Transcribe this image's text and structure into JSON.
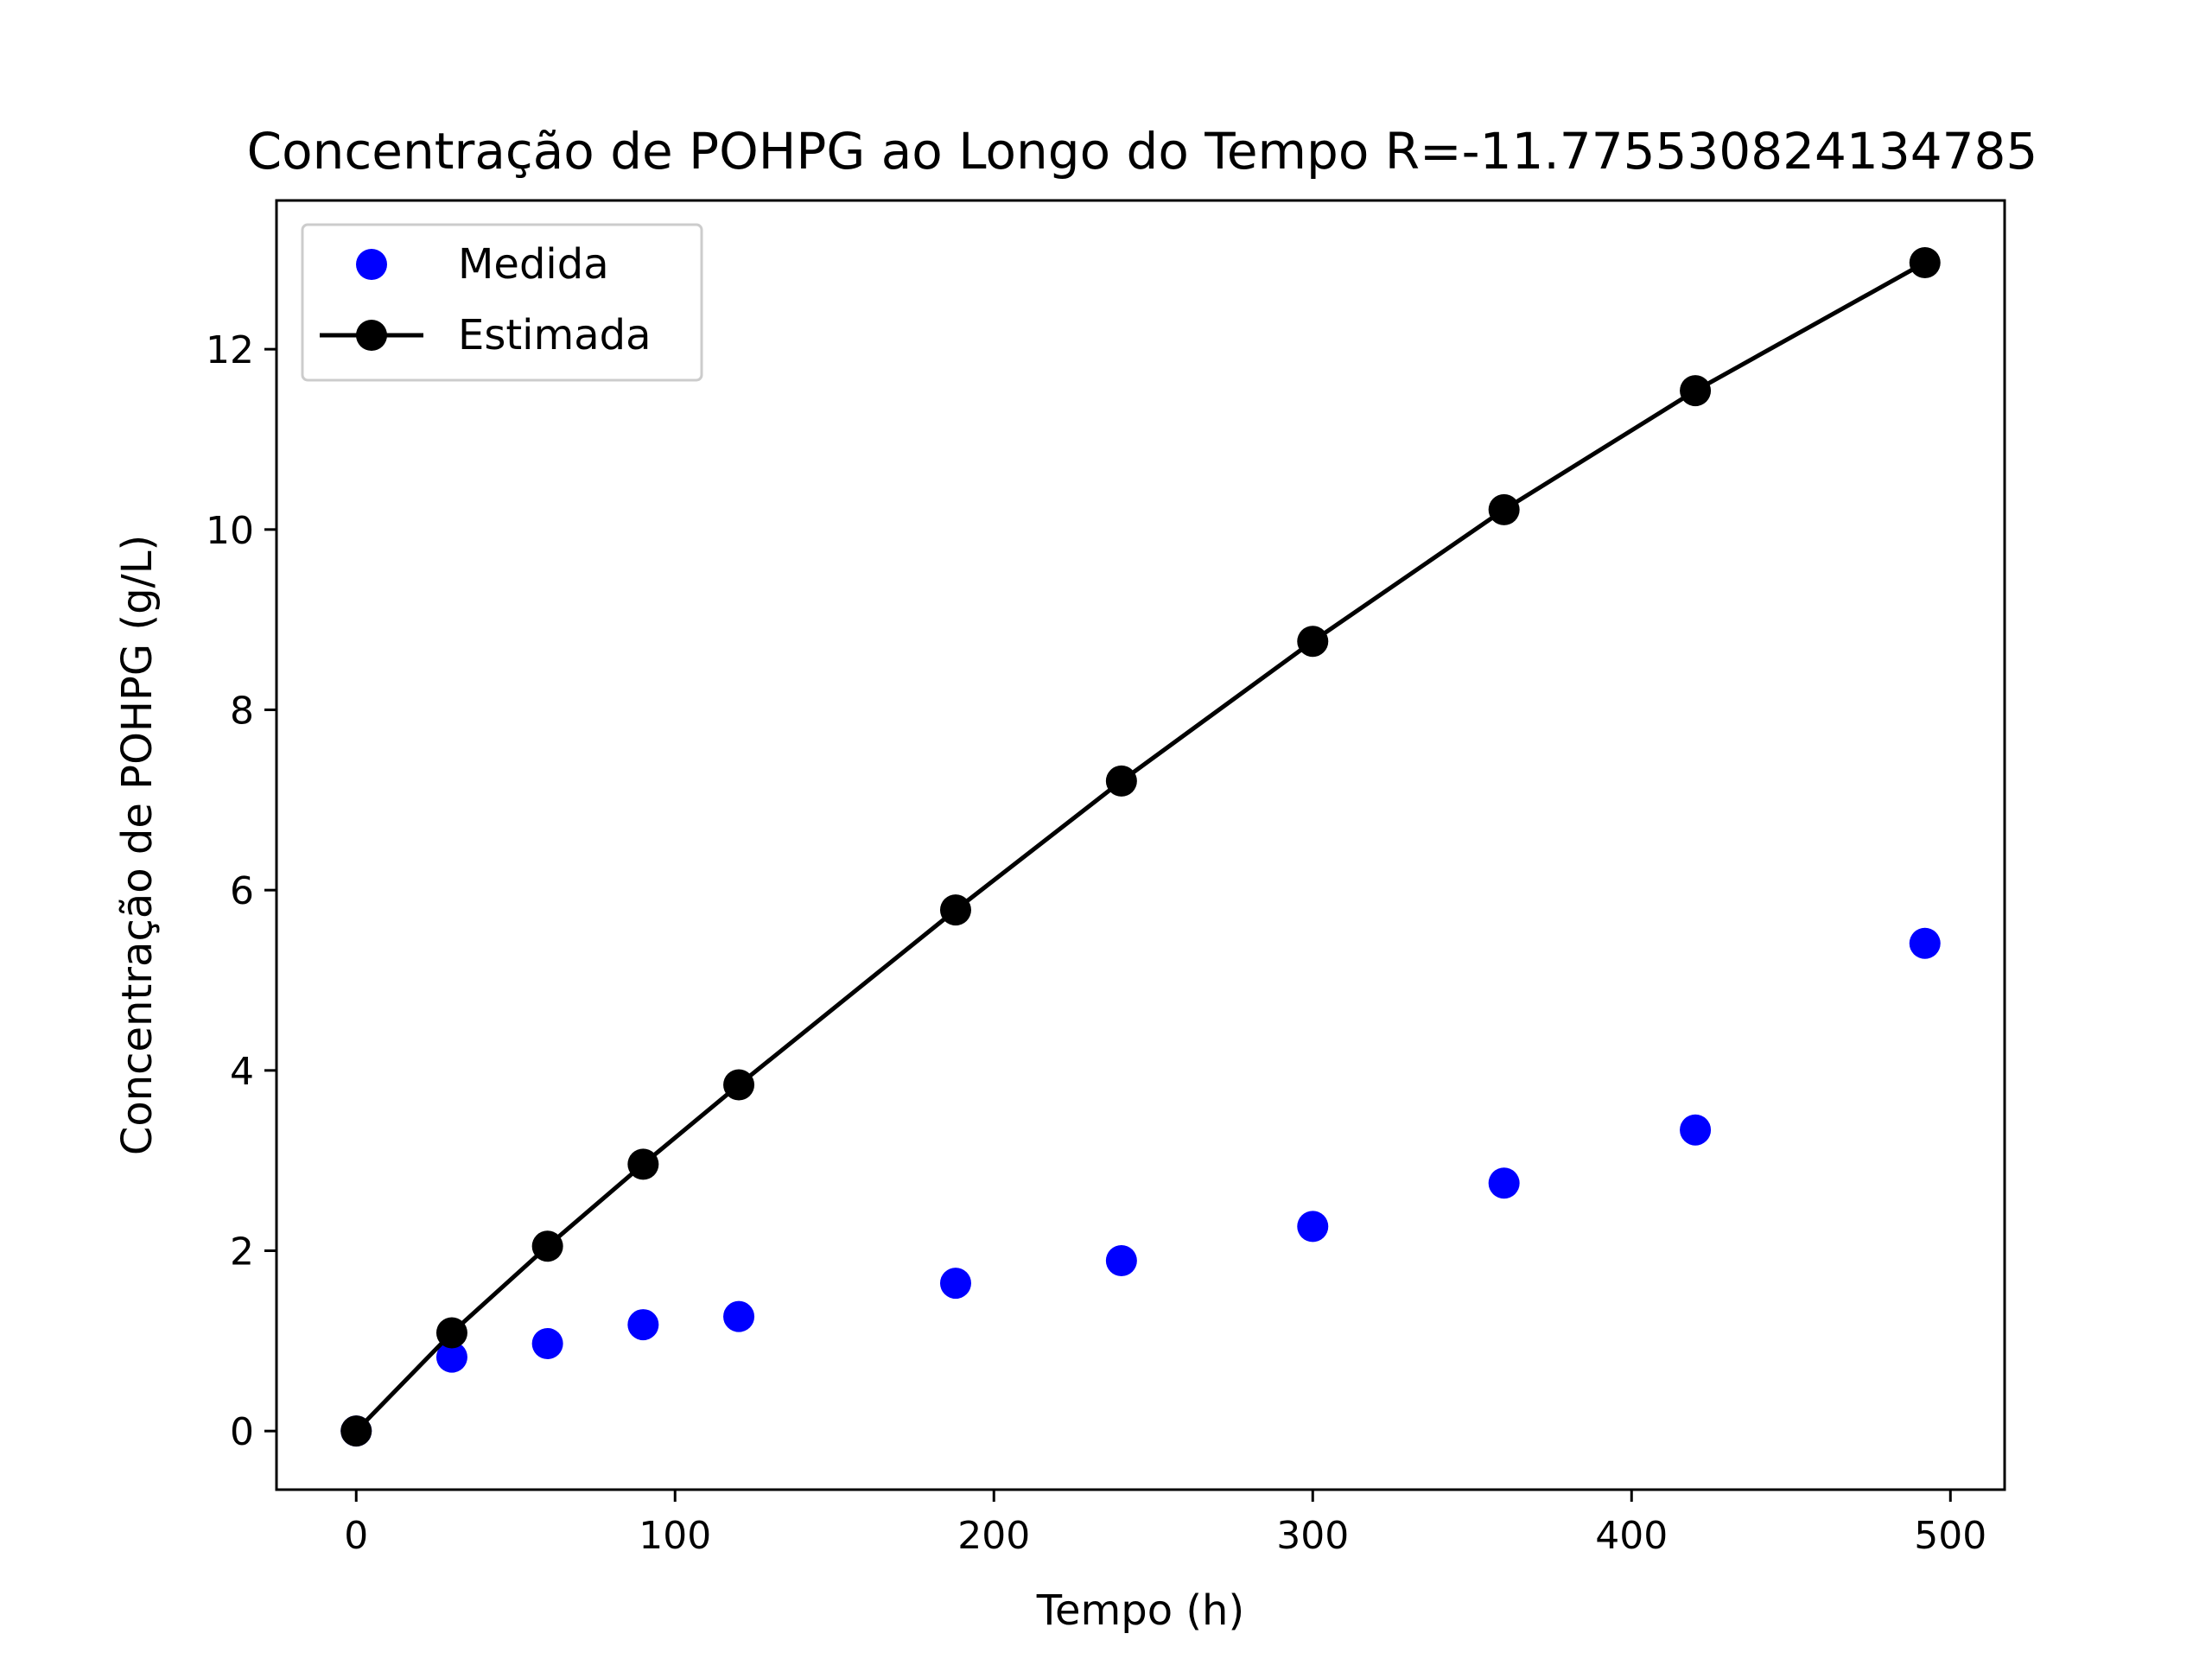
{
  "chart_data": {
    "type": "line",
    "title": "Concentração de POHPG ao Longo do Tempo R=-11.775530824134785",
    "xlabel": "Tempo (h)",
    "ylabel": "Concentração de POHPG (g/L)",
    "xlim": [
      -25,
      517
    ],
    "ylim": [
      -0.65,
      13.65
    ],
    "xticks": [
      0,
      100,
      200,
      300,
      400,
      500
    ],
    "yticks": [
      0,
      2,
      4,
      6,
      8,
      10,
      12
    ],
    "grid": false,
    "legend_position": "upper left",
    "series": [
      {
        "name": "Medida",
        "style": "markers",
        "color": "#0000ff",
        "x": [
          0,
          30,
          60,
          90,
          120,
          188,
          240,
          300,
          360,
          420,
          492
        ],
        "y": [
          0,
          0.82,
          0.97,
          1.18,
          1.27,
          1.64,
          1.89,
          2.27,
          2.75,
          3.34,
          5.41
        ]
      },
      {
        "name": "Estimada",
        "style": "line-markers",
        "color": "#000000",
        "x": [
          0,
          30,
          60,
          90,
          120,
          188,
          240,
          300,
          360,
          420,
          492
        ],
        "y": [
          0,
          1.09,
          2.05,
          2.96,
          3.84,
          5.78,
          7.21,
          8.76,
          10.22,
          11.54,
          12.96
        ]
      }
    ]
  }
}
